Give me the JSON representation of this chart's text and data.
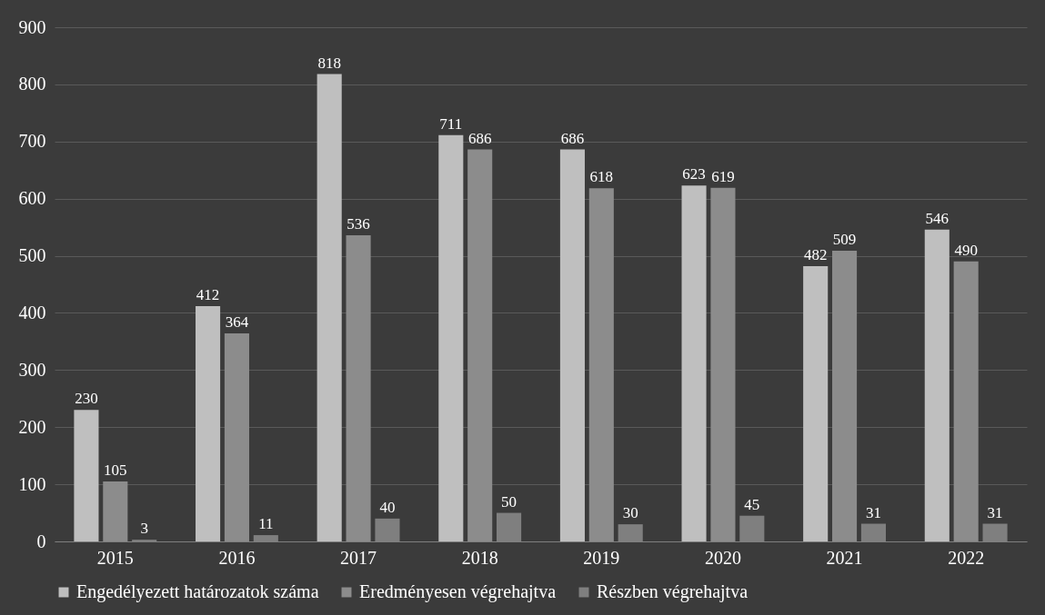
{
  "chart_data": {
    "type": "bar",
    "categories": [
      "2015",
      "2016",
      "2017",
      "2018",
      "2019",
      "2020",
      "2021",
      "2022"
    ],
    "series": [
      {
        "name": "Engedélyezett határozatok száma",
        "color": "#bfbfbf",
        "values": [
          230,
          412,
          818,
          711,
          686,
          623,
          482,
          546
        ]
      },
      {
        "name": "Eredményesen végrehajtva",
        "color": "#8c8c8c",
        "values": [
          105,
          364,
          536,
          686,
          618,
          619,
          509,
          490
        ]
      },
      {
        "name": "Részben végrehajtva",
        "color": "#7f7f7f",
        "values": [
          3,
          11,
          40,
          50,
          30,
          45,
          31,
          31
        ]
      }
    ],
    "ylim": [
      0,
      900
    ],
    "yticks": [
      0,
      100,
      200,
      300,
      400,
      500,
      600,
      700,
      800,
      900
    ],
    "grid": "y",
    "legend": "bottom",
    "data_labels": true
  }
}
